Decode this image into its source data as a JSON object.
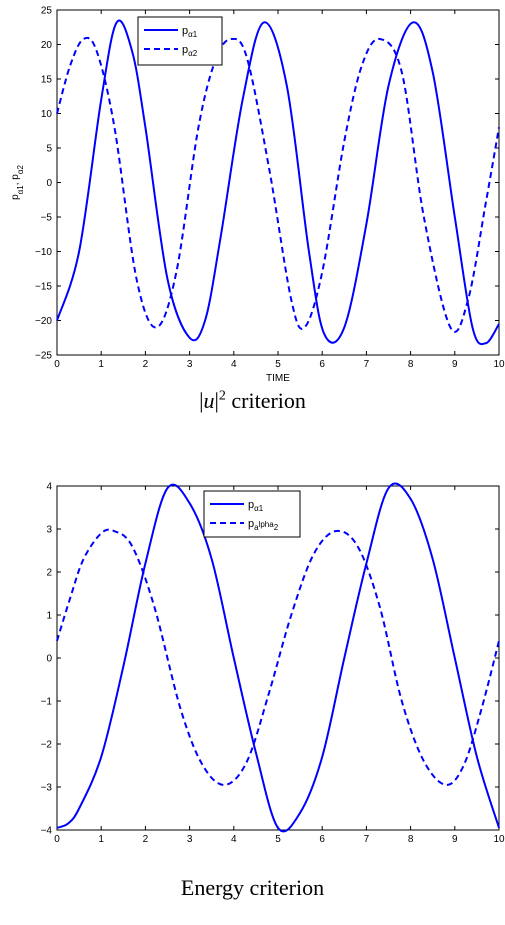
{
  "chart_data": [
    {
      "type": "line",
      "title": "",
      "xlabel": "TIME",
      "ylabel": "p_α1, p_α2",
      "xlim": [
        0,
        10
      ],
      "ylim": [
        -25,
        25
      ],
      "x_ticks": [
        "0",
        "1",
        "2",
        "3",
        "4",
        "5",
        "6",
        "7",
        "8",
        "9",
        "10"
      ],
      "y_ticks": [
        "25",
        "20",
        "15",
        "10",
        "5",
        "0",
        "−5",
        "−10",
        "−15",
        "−20",
        "−25"
      ],
      "legend": {
        "position": "top-center",
        "entries": [
          {
            "base": "p",
            "sub": "α1"
          },
          {
            "base": "p",
            "sub": "α2"
          }
        ]
      },
      "series": [
        {
          "name": "p_α1",
          "style": "solid",
          "color": "#0000ff",
          "x": [
            0,
            0.5,
            1.0,
            1.35,
            1.7,
            2.0,
            2.5,
            3.0,
            3.35,
            3.7,
            4.2,
            4.68,
            5.2,
            5.7,
            6.05,
            6.5,
            7.0,
            7.5,
            8.05,
            8.5,
            9.0,
            9.4,
            9.7,
            10.0
          ],
          "y": [
            -20,
            -10,
            12,
            23.2,
            19,
            8,
            -14,
            -22.5,
            -20,
            -8,
            12,
            23.2,
            14,
            -10,
            -22,
            -21,
            -6,
            14,
            23.2,
            16,
            -5,
            -21,
            -23.3,
            -20.5
          ]
        },
        {
          "name": "p_α2",
          "style": "dashed",
          "color": "#0000ff",
          "x": [
            0,
            0.3,
            0.6,
            0.9,
            1.3,
            1.8,
            2.25,
            2.7,
            3.2,
            3.6,
            3.95,
            4.3,
            4.8,
            5.3,
            5.6,
            6.0,
            6.5,
            6.9,
            7.3,
            7.8,
            8.3,
            8.9,
            9.3,
            9.7,
            10.0
          ],
          "y": [
            10,
            17,
            20.8,
            19,
            8,
            -14,
            -21,
            -13,
            8,
            18,
            20.8,
            18,
            2,
            -17,
            -21,
            -13,
            6,
            17,
            20.8,
            16,
            -5,
            -21,
            -17,
            -3,
            8
          ]
        }
      ]
    },
    {
      "type": "line",
      "title": "",
      "xlabel": "",
      "ylabel": "",
      "xlim": [
        0,
        10
      ],
      "ylim": [
        -4,
        4
      ],
      "x_ticks": [
        "0",
        "1",
        "2",
        "3",
        "4",
        "5",
        "6",
        "7",
        "8",
        "9",
        "10"
      ],
      "y_ticks": [
        "4",
        "3",
        "2",
        "1",
        "0",
        "−1",
        "−2",
        "−3",
        "−4"
      ],
      "legend": {
        "position": "top-center",
        "entries": [
          {
            "base": "p",
            "sub": "α1",
            "sup": ""
          },
          {
            "base": "p",
            "sub": "a",
            "tail": "lpha",
            "sub2": "2"
          }
        ]
      },
      "series": [
        {
          "name": "p_α1",
          "style": "solid",
          "color": "#0000ff",
          "x": [
            0,
            0.25,
            0.5,
            1.0,
            1.5,
            2.0,
            2.5,
            3.0,
            3.5,
            4.0,
            4.5,
            5.0,
            5.5,
            6.0,
            6.5,
            7.0,
            7.5,
            8.0,
            8.5,
            9.0,
            9.5,
            10.0
          ],
          "y": [
            -3.95,
            -3.85,
            -3.5,
            -2.3,
            -0.2,
            2.2,
            3.95,
            3.6,
            2.3,
            0.0,
            -2.2,
            -3.95,
            -3.6,
            -2.3,
            0.0,
            2.2,
            3.95,
            3.7,
            2.3,
            0.0,
            -2.3,
            -3.95
          ]
        },
        {
          "name": "p_alpha_2",
          "style": "dashed",
          "color": "#0000ff",
          "x": [
            0,
            0.3,
            0.6,
            1.0,
            1.3,
            1.7,
            2.2,
            2.8,
            3.3,
            3.8,
            4.3,
            4.8,
            5.3,
            5.8,
            6.3,
            6.8,
            7.3,
            7.8,
            8.3,
            8.8,
            9.2,
            9.6,
            10.0
          ],
          "y": [
            0.4,
            1.4,
            2.3,
            2.9,
            2.95,
            2.6,
            1.2,
            -1.2,
            -2.5,
            -2.95,
            -2.4,
            -0.8,
            1.0,
            2.4,
            2.95,
            2.6,
            1.2,
            -1.0,
            -2.4,
            -2.95,
            -2.5,
            -1.2,
            0.4
          ]
        }
      ]
    }
  ],
  "captions": {
    "top_prefix": "|",
    "top_var": "u",
    "top_suffix": "|",
    "top_power": "2",
    "top_rest": " criterion",
    "bottom": "Energy criterion"
  }
}
